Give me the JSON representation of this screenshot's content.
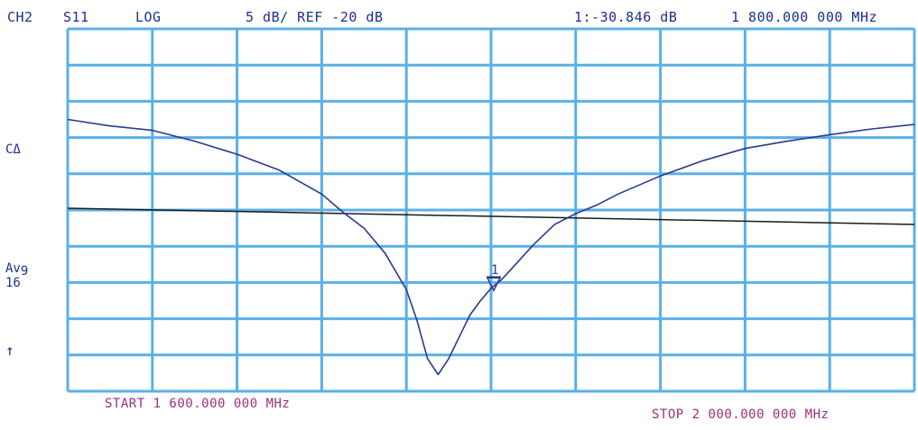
{
  "header": {
    "channel": "CH2",
    "parameter": "S11",
    "format": "LOG",
    "scale": "5 dB/ REF -20 dB",
    "marker_readout": "1:-30.846 dB",
    "marker_freq": "1 800.000 000 MHz"
  },
  "side": {
    "coupling": "CΔ",
    "avg_label": "Av",
    "avg_sub": "9",
    "avg_count": "16",
    "arrow": "↑"
  },
  "footer": {
    "start": "START 1 600.000 000 MHz",
    "stop": "STOP 2 000.000 000 MHz"
  },
  "colors": {
    "grid": "#5ab0e8",
    "trace": "#2a3a8e",
    "reference_line": "#1a1a1a",
    "header_text": "#1d2f8a",
    "footer_text": "#9a2f7a"
  },
  "chart_data": {
    "type": "line",
    "x_unit": "MHz",
    "y_unit": "dB",
    "xlim": [
      1600,
      2000
    ],
    "ylim": [
      -45,
      5
    ],
    "x_divisions": 10,
    "y_divisions": 10,
    "grid": true,
    "reference_level": -20,
    "series": [
      {
        "x": [
          1600,
          1620,
          1640,
          1660,
          1680,
          1700,
          1720,
          1730,
          1740,
          1750,
          1760,
          1765,
          1770,
          1775,
          1780,
          1785,
          1790,
          1795,
          1800,
          1805,
          1810,
          1820,
          1830,
          1840,
          1850,
          1860,
          1880,
          1900,
          1920,
          1940,
          1960,
          1980,
          2000
        ],
        "y": [
          -7.5,
          -8.4,
          -9.0,
          -10.5,
          -12.3,
          -14.5,
          -17.8,
          -20.3,
          -22.5,
          -26.0,
          -31.0,
          -35.2,
          -40.5,
          -42.7,
          -40.5,
          -37.5,
          -34.5,
          -32.5,
          -30.8,
          -29.6,
          -28.0,
          -24.8,
          -22.0,
          -20.5,
          -19.3,
          -17.8,
          -15.3,
          -13.2,
          -11.5,
          -10.5,
          -9.6,
          -8.8,
          -8.2
        ]
      }
    ],
    "markers": [
      {
        "label": "1",
        "x": 1800,
        "y": -30.846
      }
    ]
  }
}
